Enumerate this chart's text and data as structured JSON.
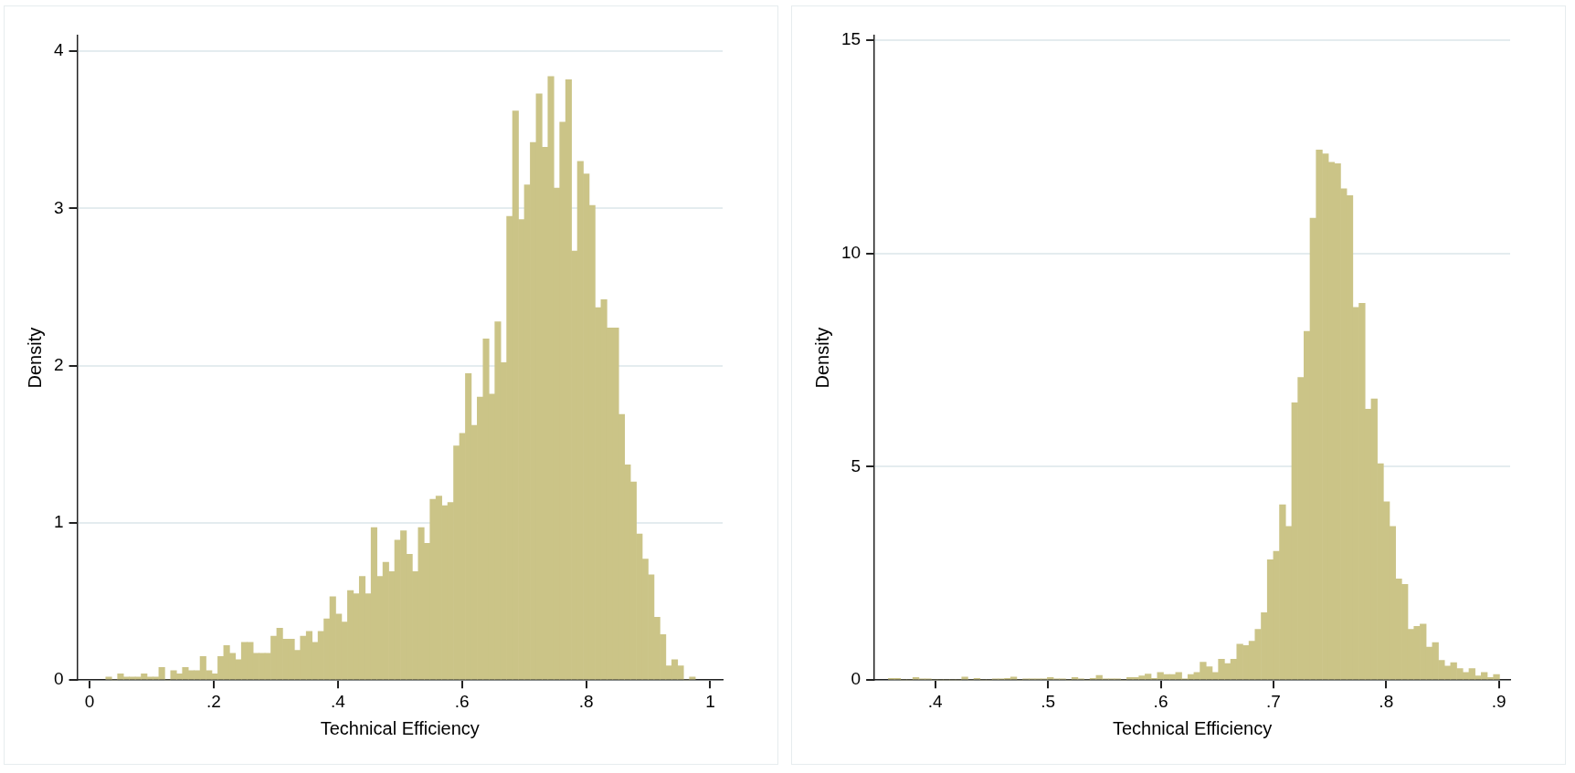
{
  "chart_data": [
    {
      "type": "histogram",
      "xlabel": "Technical Efficiency",
      "ylabel": "Density",
      "color": "#cbc487",
      "bins": [
        0.026,
        0.0355,
        0.045,
        0.0545,
        0.064,
        0.0735,
        0.083,
        0.0925,
        0.102,
        0.1115,
        0.121,
        0.1305,
        0.14,
        0.1495,
        0.159,
        0.1685,
        0.178,
        0.1875,
        0.197,
        0.2065,
        0.216,
        0.2255,
        0.235,
        0.2445,
        0.254,
        0.2635,
        0.273,
        0.2825,
        0.292,
        0.3015,
        0.311,
        0.3205,
        0.33,
        0.3395,
        0.349,
        0.3585,
        0.368,
        0.3775,
        0.387,
        0.3965,
        0.406,
        0.4155,
        0.425,
        0.4345,
        0.444,
        0.4535,
        0.463,
        0.4725,
        0.482,
        0.4915,
        0.501,
        0.5105,
        0.52,
        0.5295,
        0.539,
        0.5485,
        0.558,
        0.5675,
        0.577,
        0.5865,
        0.596,
        0.6055,
        0.615,
        0.6245,
        0.634,
        0.6435,
        0.653,
        0.6625,
        0.672,
        0.6815,
        0.691,
        0.7005,
        0.71,
        0.7195,
        0.729,
        0.7385,
        0.748,
        0.7575,
        0.767,
        0.7765,
        0.786,
        0.7955,
        0.805,
        0.8145,
        0.824,
        0.8335,
        0.843,
        0.8525,
        0.862,
        0.8715,
        0.881,
        0.8905,
        0.9,
        0.9095,
        0.919,
        0.9285,
        0.938,
        0.9475,
        0.957,
        0.9665,
        0.976
      ],
      "values": [
        0.02,
        0,
        0.04,
        0.02,
        0.02,
        0.02,
        0.04,
        0.02,
        0.02,
        0.08,
        0,
        0.06,
        0.04,
        0.08,
        0.06,
        0.06,
        0.15,
        0.06,
        0.04,
        0.15,
        0.22,
        0.17,
        0.13,
        0.24,
        0.24,
        0.17,
        0.17,
        0.17,
        0.28,
        0.33,
        0.26,
        0.26,
        0.19,
        0.28,
        0.31,
        0.24,
        0.31,
        0.39,
        0.53,
        0.42,
        0.37,
        0.57,
        0.55,
        0.66,
        0.55,
        0.97,
        0.66,
        0.75,
        0.69,
        0.89,
        0.95,
        0.8,
        0.69,
        0.97,
        0.87,
        1.15,
        1.17,
        1.11,
        1.13,
        1.49,
        1.57,
        1.95,
        1.62,
        1.8,
        2.17,
        1.82,
        2.28,
        2.02,
        2.95,
        3.62,
        2.93,
        3.15,
        3.42,
        3.73,
        3.39,
        3.84,
        3.13,
        3.55,
        3.82,
        2.73,
        3.3,
        3.22,
        3.02,
        2.37,
        2.42,
        2.24,
        2.24,
        1.69,
        1.37,
        1.26,
        0.93,
        0.77,
        0.67,
        0.4,
        0.29,
        0.09,
        0.13,
        0.09,
        0,
        0.02
      ],
      "xlim": [
        -0.02,
        1.02
      ],
      "ylim": [
        0,
        4.1
      ],
      "xticks": [
        0,
        {
          "value": 0.2,
          "label": ".2"
        },
        {
          "value": 0.4,
          "label": ".4"
        },
        {
          "value": 0.6,
          "label": ".6"
        },
        {
          "value": 0.8,
          "label": ".8"
        },
        1
      ],
      "yticks": [
        0,
        1,
        2,
        3,
        4
      ],
      "grid": "y"
    },
    {
      "type": "histogram",
      "xlabel": "Technical Efficiency",
      "ylabel": "Density",
      "color": "#cbc487",
      "bins": [
        0.3584,
        0.3638,
        0.3692,
        0.3747,
        0.3801,
        0.3855,
        0.3909,
        0.3964,
        0.4018,
        0.4072,
        0.4126,
        0.418,
        0.4235,
        0.4289,
        0.4343,
        0.4397,
        0.4452,
        0.4506,
        0.456,
        0.4614,
        0.4668,
        0.4723,
        0.4777,
        0.4831,
        0.4885,
        0.494,
        0.4994,
        0.5048,
        0.5102,
        0.5156,
        0.5211,
        0.5265,
        0.5319,
        0.5373,
        0.5427,
        0.5482,
        0.5536,
        0.559,
        0.5644,
        0.5699,
        0.5753,
        0.5807,
        0.5861,
        0.5915,
        0.597,
        0.6024,
        0.6078,
        0.6132,
        0.6187,
        0.6241,
        0.6295,
        0.6349,
        0.6403,
        0.6458,
        0.6512,
        0.6566,
        0.662,
        0.6675,
        0.6729,
        0.6783,
        0.6837,
        0.6891,
        0.6946,
        0.7,
        0.7054,
        0.7108,
        0.7162,
        0.7217,
        0.7271,
        0.7325,
        0.7379,
        0.7434,
        0.7488,
        0.7542,
        0.7596,
        0.765,
        0.7705,
        0.7759,
        0.7813,
        0.7867,
        0.7922,
        0.7976,
        0.803,
        0.8084,
        0.8138,
        0.8193,
        0.8247,
        0.8301,
        0.8355,
        0.841,
        0.8464,
        0.8518,
        0.8572,
        0.8626,
        0.8681,
        0.8735,
        0.8789,
        0.8843,
        0.8898,
        0.8952,
        0.9006
      ],
      "values": [
        0.04,
        0.04,
        0,
        0,
        0.06,
        0.03,
        0.03,
        0,
        0,
        0,
        0,
        0,
        0.07,
        0,
        0.04,
        0,
        0,
        0.03,
        0.03,
        0.04,
        0.07,
        0,
        0.03,
        0.03,
        0.03,
        0.03,
        0.06,
        0.03,
        0.03,
        0,
        0.06,
        0.03,
        0,
        0.04,
        0.11,
        0.03,
        0.03,
        0.03,
        0,
        0.06,
        0.06,
        0.1,
        0.14,
        0.04,
        0.18,
        0.13,
        0.13,
        0.18,
        0.03,
        0.13,
        0.18,
        0.42,
        0.31,
        0.18,
        0.49,
        0.39,
        0.49,
        0.84,
        0.81,
        0.91,
        1.19,
        1.58,
        2.82,
        3.02,
        4.11,
        3.6,
        6.5,
        7.09,
        8.17,
        10.82,
        12.42,
        12.33,
        12.13,
        12.1,
        11.51,
        11.35,
        8.73,
        8.83,
        6.35,
        6.59,
        5.07,
        4.18,
        3.6,
        2.37,
        2.24,
        1.19,
        1.26,
        1.31,
        0.77,
        0.88,
        0.46,
        0.33,
        0.41,
        0.27,
        0.18,
        0.27,
        0.1,
        0.18,
        0.06,
        0.13
      ],
      "xlim": [
        0.346,
        0.91
      ],
      "ylim": [
        0,
        15.1
      ],
      "xticks": [
        {
          "value": 0.4,
          "label": ".4"
        },
        {
          "value": 0.5,
          "label": ".5"
        },
        {
          "value": 0.6,
          "label": ".6"
        },
        {
          "value": 0.7,
          "label": ".7"
        },
        {
          "value": 0.8,
          "label": ".8"
        },
        {
          "value": 0.9,
          "label": ".9"
        }
      ],
      "yticks": [
        0,
        5,
        10,
        15
      ],
      "grid": "y"
    }
  ]
}
